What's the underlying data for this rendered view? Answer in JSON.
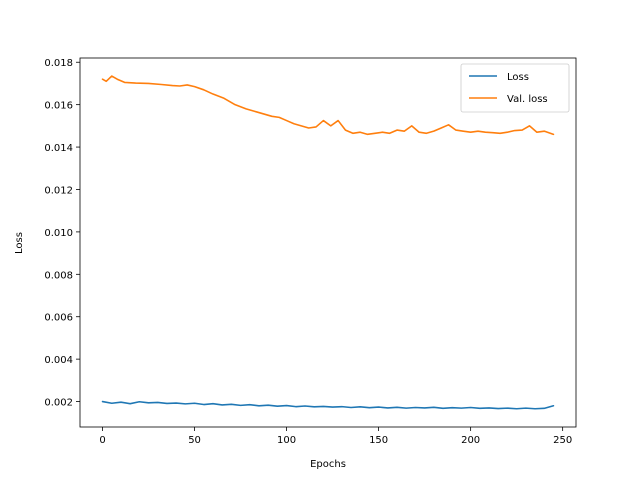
{
  "chart_data": {
    "type": "line",
    "title": "",
    "xlabel": "Epochs",
    "ylabel": "Loss",
    "xlim": [
      -12.25,
      257.25
    ],
    "ylim": [
      0.0008,
      0.0182
    ],
    "xticks": [
      0,
      50,
      100,
      150,
      200,
      250
    ],
    "xtick_labels": [
      "0",
      "50",
      "100",
      "150",
      "200",
      "250"
    ],
    "yticks": [
      0.002,
      0.004,
      0.006,
      0.008,
      0.01,
      0.012,
      0.014,
      0.016,
      0.018
    ],
    "ytick_labels": [
      "0.002",
      "0.004",
      "0.006",
      "0.008",
      "0.010",
      "0.012",
      "0.014",
      "0.016",
      "0.018"
    ],
    "grid": false,
    "legend_position": "upper-right",
    "series": [
      {
        "name": "Loss",
        "color": "#1f77b4",
        "x": [
          0,
          5,
          10,
          15,
          20,
          25,
          30,
          35,
          40,
          45,
          50,
          55,
          60,
          65,
          70,
          75,
          80,
          85,
          90,
          95,
          100,
          105,
          110,
          115,
          120,
          125,
          130,
          135,
          140,
          145,
          150,
          155,
          160,
          165,
          170,
          175,
          180,
          185,
          190,
          195,
          200,
          205,
          210,
          215,
          220,
          225,
          230,
          235,
          240,
          245
        ],
        "y": [
          0.002,
          0.00192,
          0.00197,
          0.0019,
          0.00199,
          0.00194,
          0.00196,
          0.00191,
          0.00193,
          0.00189,
          0.00192,
          0.00186,
          0.0019,
          0.00184,
          0.00187,
          0.00182,
          0.00185,
          0.0018,
          0.00183,
          0.00178,
          0.00181,
          0.00176,
          0.00179,
          0.00175,
          0.00177,
          0.00174,
          0.00176,
          0.00172,
          0.00175,
          0.00171,
          0.00174,
          0.0017,
          0.00173,
          0.00169,
          0.00172,
          0.0017,
          0.00173,
          0.00168,
          0.00171,
          0.00169,
          0.00172,
          0.00168,
          0.0017,
          0.00167,
          0.00169,
          0.00166,
          0.00169,
          0.00166,
          0.00168,
          0.0018
        ]
      },
      {
        "name": "Val. loss",
        "color": "#ff7f0e",
        "x": [
          0,
          2,
          5,
          8,
          12,
          18,
          25,
          32,
          38,
          42,
          46,
          50,
          55,
          60,
          66,
          72,
          78,
          84,
          88,
          92,
          96,
          100,
          104,
          108,
          112,
          116,
          120,
          124,
          128,
          132,
          136,
          140,
          144,
          148,
          152,
          156,
          160,
          164,
          168,
          172,
          176,
          180,
          184,
          188,
          192,
          196,
          200,
          204,
          208,
          212,
          216,
          220,
          224,
          228,
          232,
          236,
          240,
          245
        ],
        "y": [
          0.0172,
          0.0171,
          0.01735,
          0.0172,
          0.01705,
          0.01702,
          0.017,
          0.01695,
          0.0169,
          0.01688,
          0.01693,
          0.01685,
          0.0167,
          0.0165,
          0.0163,
          0.016,
          0.0158,
          0.01565,
          0.01555,
          0.01545,
          0.0154,
          0.01525,
          0.0151,
          0.015,
          0.0149,
          0.01495,
          0.01525,
          0.015,
          0.01525,
          0.0148,
          0.01465,
          0.0147,
          0.0146,
          0.01465,
          0.0147,
          0.01465,
          0.0148,
          0.01475,
          0.015,
          0.0147,
          0.01465,
          0.01475,
          0.0149,
          0.01505,
          0.0148,
          0.01475,
          0.0147,
          0.01475,
          0.0147,
          0.01468,
          0.01465,
          0.0147,
          0.01478,
          0.0148,
          0.015,
          0.0147,
          0.01475,
          0.0146
        ]
      }
    ]
  }
}
